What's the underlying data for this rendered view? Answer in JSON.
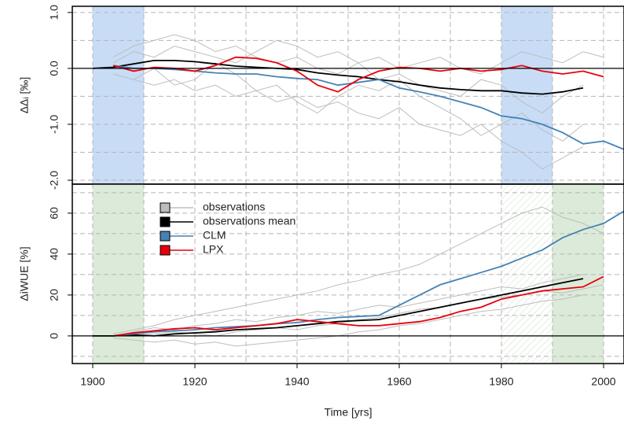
{
  "chart_data": [
    {
      "type": "line",
      "ylabel": "ΔΔᵢ [‰]",
      "xlim": [
        1896,
        2004
      ],
      "ylim": [
        -2.07,
        1.11
      ],
      "yticks": [
        {
          "value": 1,
          "label": "1.0"
        },
        {
          "value": 0,
          "label": "0.0"
        },
        {
          "value": -1,
          "label": "-1.0"
        },
        {
          "value": -2,
          "label": "-2.0"
        }
      ],
      "grid": true,
      "xgrid": [
        1900,
        1910,
        1920,
        1930,
        1940,
        1950,
        1960,
        1970,
        1980,
        1990,
        2000
      ],
      "ygrid": [
        -2,
        -1.5,
        -1,
        -0.5,
        0.5,
        1
      ],
      "hline": 0,
      "shaded": [
        {
          "start": 1900,
          "end": 1910,
          "color": "#c8dcf6"
        },
        {
          "start": 1980,
          "end": 1990,
          "color": "#c8dcf6"
        }
      ],
      "x": [
        1900,
        1904,
        1908,
        1912,
        1916,
        1920,
        1924,
        1928,
        1932,
        1936,
        1940,
        1944,
        1948,
        1952,
        1956,
        1960,
        1964,
        1968,
        1972,
        1976,
        1980,
        1984,
        1988,
        1992,
        1996,
        2000,
        2004
      ],
      "series": [
        {
          "name": "observations",
          "color": "#bdbdbd",
          "values": [
            null,
            0.2,
            0.4,
            0.5,
            0.6,
            0.5,
            0.3,
            0.4,
            0.2,
            0.1,
            0.2,
            0.0,
            -0.1,
            0.1,
            -0.2,
            -0.1,
            -0.3,
            -0.4,
            -0.5,
            -0.2,
            -0.3,
            -0.6,
            -0.8,
            -0.5,
            -0.3,
            null,
            null
          ]
        },
        {
          "name": "observations",
          "color": "#bdbdbd",
          "values": [
            null,
            -0.1,
            -0.2,
            -0.3,
            -0.2,
            -0.4,
            -0.3,
            -0.5,
            -0.4,
            -0.6,
            -0.5,
            -0.7,
            -0.6,
            -0.8,
            -0.9,
            -0.7,
            -1.0,
            -1.1,
            -1.2,
            -1.0,
            -1.3,
            -1.5,
            -1.8,
            -1.6,
            -1.4,
            null,
            null
          ]
        },
        {
          "name": "observations",
          "color": "#bdbdbd",
          "values": [
            null,
            0.1,
            0.3,
            0.2,
            0.4,
            0.3,
            0.2,
            0.1,
            0.3,
            0.5,
            0.4,
            0.2,
            0.3,
            0.1,
            0.2,
            0.0,
            0.1,
            0.2,
            0.0,
            -0.1,
            0.1,
            0.3,
            0.2,
            0.1,
            0.3,
            0.2,
            null
          ]
        },
        {
          "name": "observations",
          "color": "#bdbdbd",
          "values": [
            null,
            null,
            -0.2,
            0.0,
            -0.3,
            -0.2,
            0.1,
            -0.1,
            -0.4,
            -0.3,
            -0.6,
            -0.8,
            -0.5,
            -0.3,
            -0.4,
            -0.2,
            -0.5,
            -0.7,
            -0.9,
            -1.2,
            -1.0,
            -0.8,
            -1.1,
            -1.3,
            -1.0,
            null,
            null
          ]
        },
        {
          "name": "observations mean",
          "color": "#000000",
          "values": [
            0,
            0.02,
            0.08,
            0.14,
            0.14,
            0.12,
            0.08,
            0.04,
            0.02,
            0.0,
            -0.02,
            -0.08,
            -0.12,
            -0.15,
            -0.2,
            -0.24,
            -0.3,
            -0.35,
            -0.38,
            -0.4,
            -0.4,
            -0.44,
            -0.46,
            -0.42,
            -0.35,
            null,
            null
          ]
        },
        {
          "name": "CLM",
          "color": "#4682b4",
          "values": [
            null,
            0.05,
            0.0,
            0.0,
            -0.02,
            -0.05,
            -0.08,
            -0.1,
            -0.1,
            -0.15,
            -0.18,
            -0.2,
            -0.3,
            -0.25,
            -0.2,
            -0.35,
            -0.42,
            -0.5,
            -0.6,
            -0.7,
            -0.85,
            -0.9,
            -1.0,
            -1.15,
            -1.35,
            -1.3,
            -1.45
          ]
        },
        {
          "name": "LPX",
          "color": "#e8000b",
          "values": [
            null,
            0.05,
            -0.05,
            0.02,
            0.0,
            -0.05,
            0.05,
            0.2,
            0.18,
            0.1,
            -0.05,
            -0.3,
            -0.42,
            -0.2,
            -0.05,
            0.02,
            0.0,
            -0.05,
            0.0,
            -0.05,
            -0.02,
            0.05,
            -0.05,
            -0.1,
            -0.05,
            -0.15,
            null
          ]
        }
      ]
    },
    {
      "type": "line",
      "ylabel": "ΔiWUE [%]",
      "xlabel": "Time [yrs]",
      "xlim": [
        1896,
        2004
      ],
      "ylim": [
        -13.5,
        74.2
      ],
      "xticks": [
        1900,
        1920,
        1940,
        1960,
        1980,
        2000
      ],
      "yticks": [
        0,
        20,
        40,
        60
      ],
      "grid": true,
      "xgrid": [
        1900,
        1910,
        1920,
        1930,
        1940,
        1950,
        1960,
        1970,
        1980,
        1990,
        2000
      ],
      "ygrid": [
        -10,
        10,
        20,
        30,
        40,
        50,
        60,
        70
      ],
      "hline": 0,
      "shaded": [
        {
          "start": 1900,
          "end": 1910,
          "color": "#dcebd9"
        },
        {
          "start": 1980,
          "end": 1990,
          "color": "#dcebd9",
          "style": "hatch"
        },
        {
          "start": 1990,
          "end": 2000,
          "color": "#dcebd9"
        }
      ],
      "legend": [
        {
          "name": "observations",
          "color": "#bdbdbd"
        },
        {
          "name": "observations mean",
          "color": "#000000"
        },
        {
          "name": "CLM",
          "color": "#4682b4"
        },
        {
          "name": "LPX",
          "color": "#e8000b"
        }
      ],
      "x": [
        1900,
        1904,
        1908,
        1912,
        1916,
        1920,
        1924,
        1928,
        1932,
        1936,
        1940,
        1944,
        1948,
        1952,
        1956,
        1960,
        1964,
        1968,
        1972,
        1976,
        1980,
        1984,
        1988,
        1992,
        1996,
        2000,
        2004
      ],
      "series": [
        {
          "name": "observations",
          "color": "#bdbdbd",
          "values": [
            null,
            0,
            2,
            4,
            3,
            5,
            6,
            8,
            7,
            9,
            10,
            12,
            11,
            13,
            15,
            14,
            16,
            18,
            20,
            22,
            24,
            23,
            26,
            28,
            30,
            null,
            null
          ]
        },
        {
          "name": "observations",
          "color": "#bdbdbd",
          "values": [
            null,
            -1,
            -2,
            -3,
            -2,
            -4,
            -3,
            -5,
            -4,
            -3,
            -2,
            -1,
            0,
            2,
            3,
            5,
            6,
            8,
            10,
            12,
            13,
            15,
            17,
            18,
            20,
            null,
            null
          ]
        },
        {
          "name": "observations",
          "color": "#bdbdbd",
          "values": [
            null,
            1,
            3,
            5,
            8,
            10,
            12,
            14,
            16,
            18,
            20,
            22,
            25,
            27,
            30,
            32,
            35,
            40,
            45,
            50,
            55,
            60,
            63,
            58,
            55,
            50,
            null
          ]
        },
        {
          "name": "observations",
          "color": "#bdbdbd",
          "values": [
            null,
            null,
            0,
            1,
            2,
            1,
            0,
            2,
            3,
            4,
            3,
            5,
            6,
            8,
            9,
            11,
            13,
            14,
            16,
            18,
            19,
            20,
            22,
            21,
            23,
            25,
            null
          ]
        },
        {
          "name": "observations mean",
          "color": "#000000",
          "values": [
            0,
            0,
            0.5,
            0,
            1,
            1.5,
            2,
            3,
            3.5,
            4,
            5,
            6,
            7,
            7.5,
            8,
            10,
            12,
            14,
            16,
            18,
            20,
            22,
            24,
            26,
            28,
            null,
            null
          ]
        },
        {
          "name": "CLM",
          "color": "#4682b4",
          "values": [
            null,
            0,
            1,
            2,
            2.5,
            3,
            4,
            4.5,
            5,
            6,
            6.5,
            8,
            9,
            9.5,
            10,
            15,
            20,
            25,
            28,
            31,
            34,
            38,
            42,
            48,
            52,
            55,
            61
          ]
        },
        {
          "name": "LPX",
          "color": "#e8000b",
          "values": [
            null,
            0,
            1.5,
            2.5,
            3.5,
            4,
            3,
            4,
            5,
            6,
            8,
            7,
            6,
            5,
            5,
            6,
            7,
            9,
            12,
            14,
            18,
            20,
            22,
            23,
            24,
            29,
            null
          ]
        }
      ]
    }
  ]
}
